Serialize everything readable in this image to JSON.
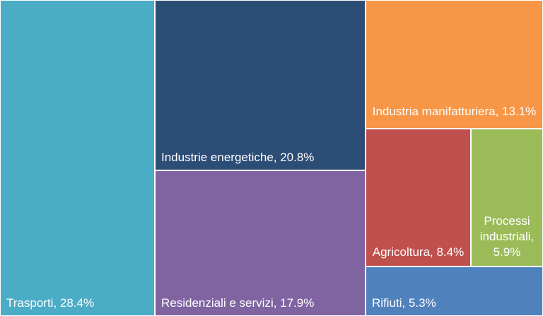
{
  "chart_data": {
    "type": "treemap",
    "title": "",
    "items": [
      {
        "key": "trasporti",
        "label": "Trasporti, 28.4%",
        "category": "Trasporti",
        "value": 28.4,
        "color": "#4bacc6"
      },
      {
        "key": "energetiche",
        "label": "Industrie energetiche, 20.8%",
        "category": "Industrie energetiche",
        "value": 20.8,
        "color": "#2c4d75"
      },
      {
        "key": "residenziali",
        "label": "Residenziali e servizi, 17.9%",
        "category": "Residenziali e servizi",
        "value": 17.9,
        "color": "#8064a2"
      },
      {
        "key": "manifatturiera",
        "label": "Industria manifatturiera, 13.1%",
        "category": "Industria manifatturiera",
        "value": 13.1,
        "color": "#f79646"
      },
      {
        "key": "agricoltura",
        "label": "Agricoltura, 8.4%",
        "category": "Agricoltura",
        "value": 8.4,
        "color": "#c0504d"
      },
      {
        "key": "processi",
        "label": "Processi industriali, 5.9%",
        "category": "Processi industriali",
        "value": 5.9,
        "color": "#9bbb59"
      },
      {
        "key": "rifiuti",
        "label": "Rifiuti, 5.3%",
        "category": "Rifiuti",
        "value": 5.3,
        "color": "#4f81bd"
      }
    ]
  }
}
